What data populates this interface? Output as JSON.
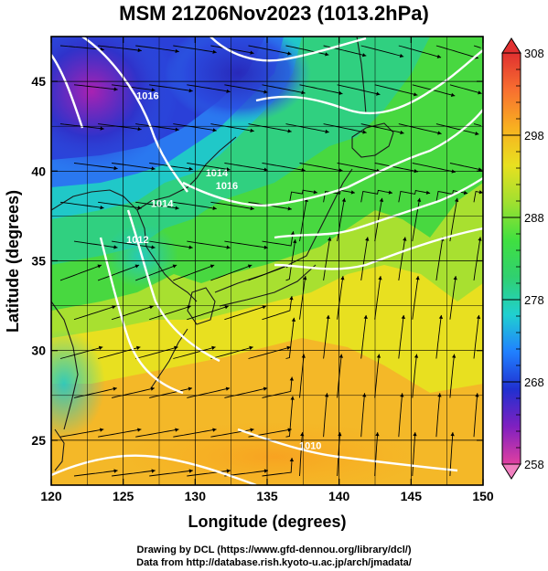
{
  "title": "MSM 21Z06Nov2023 (1013.2hPa)",
  "x_axis": {
    "label": "Longitude (degrees)",
    "range": [
      120,
      150
    ],
    "ticks": [
      120,
      125,
      130,
      135,
      140,
      145,
      150
    ]
  },
  "y_axis": {
    "label": "Latitude  (degrees)",
    "range": [
      22.5,
      47.5
    ],
    "ticks": [
      25,
      30,
      35,
      40,
      45
    ]
  },
  "colorbar": {
    "range": [
      258,
      308
    ],
    "ticks": [
      258,
      268,
      278,
      288,
      298,
      308
    ],
    "colors": [
      "#e040a0",
      "#8020c0",
      "#2030d0",
      "#2080ff",
      "#20d0d0",
      "#30d070",
      "#40e040",
      "#a0e030",
      "#e8e020",
      "#f8b020",
      "#f87030",
      "#e03030"
    ]
  },
  "isobar_labels": [
    {
      "text": "1016",
      "lon": 126.7,
      "lat": 44.0
    },
    {
      "text": "1014",
      "lon": 131.5,
      "lat": 39.7
    },
    {
      "text": "1016",
      "lon": 132.2,
      "lat": 39.0
    },
    {
      "text": "1012",
      "lon": 126.0,
      "lat": 36.0
    },
    {
      "text": "1014",
      "lon": 127.7,
      "lat": 38.0
    },
    {
      "text": "1010",
      "lon": 138.0,
      "lat": 24.5
    }
  ],
  "credits": {
    "line1": "Drawing by DCL (https://www.gfd-dennou.org/library/dcl/)",
    "line2": "Data from http://database.rish.kyoto-u.ac.jp/arch/jmadata/"
  }
}
